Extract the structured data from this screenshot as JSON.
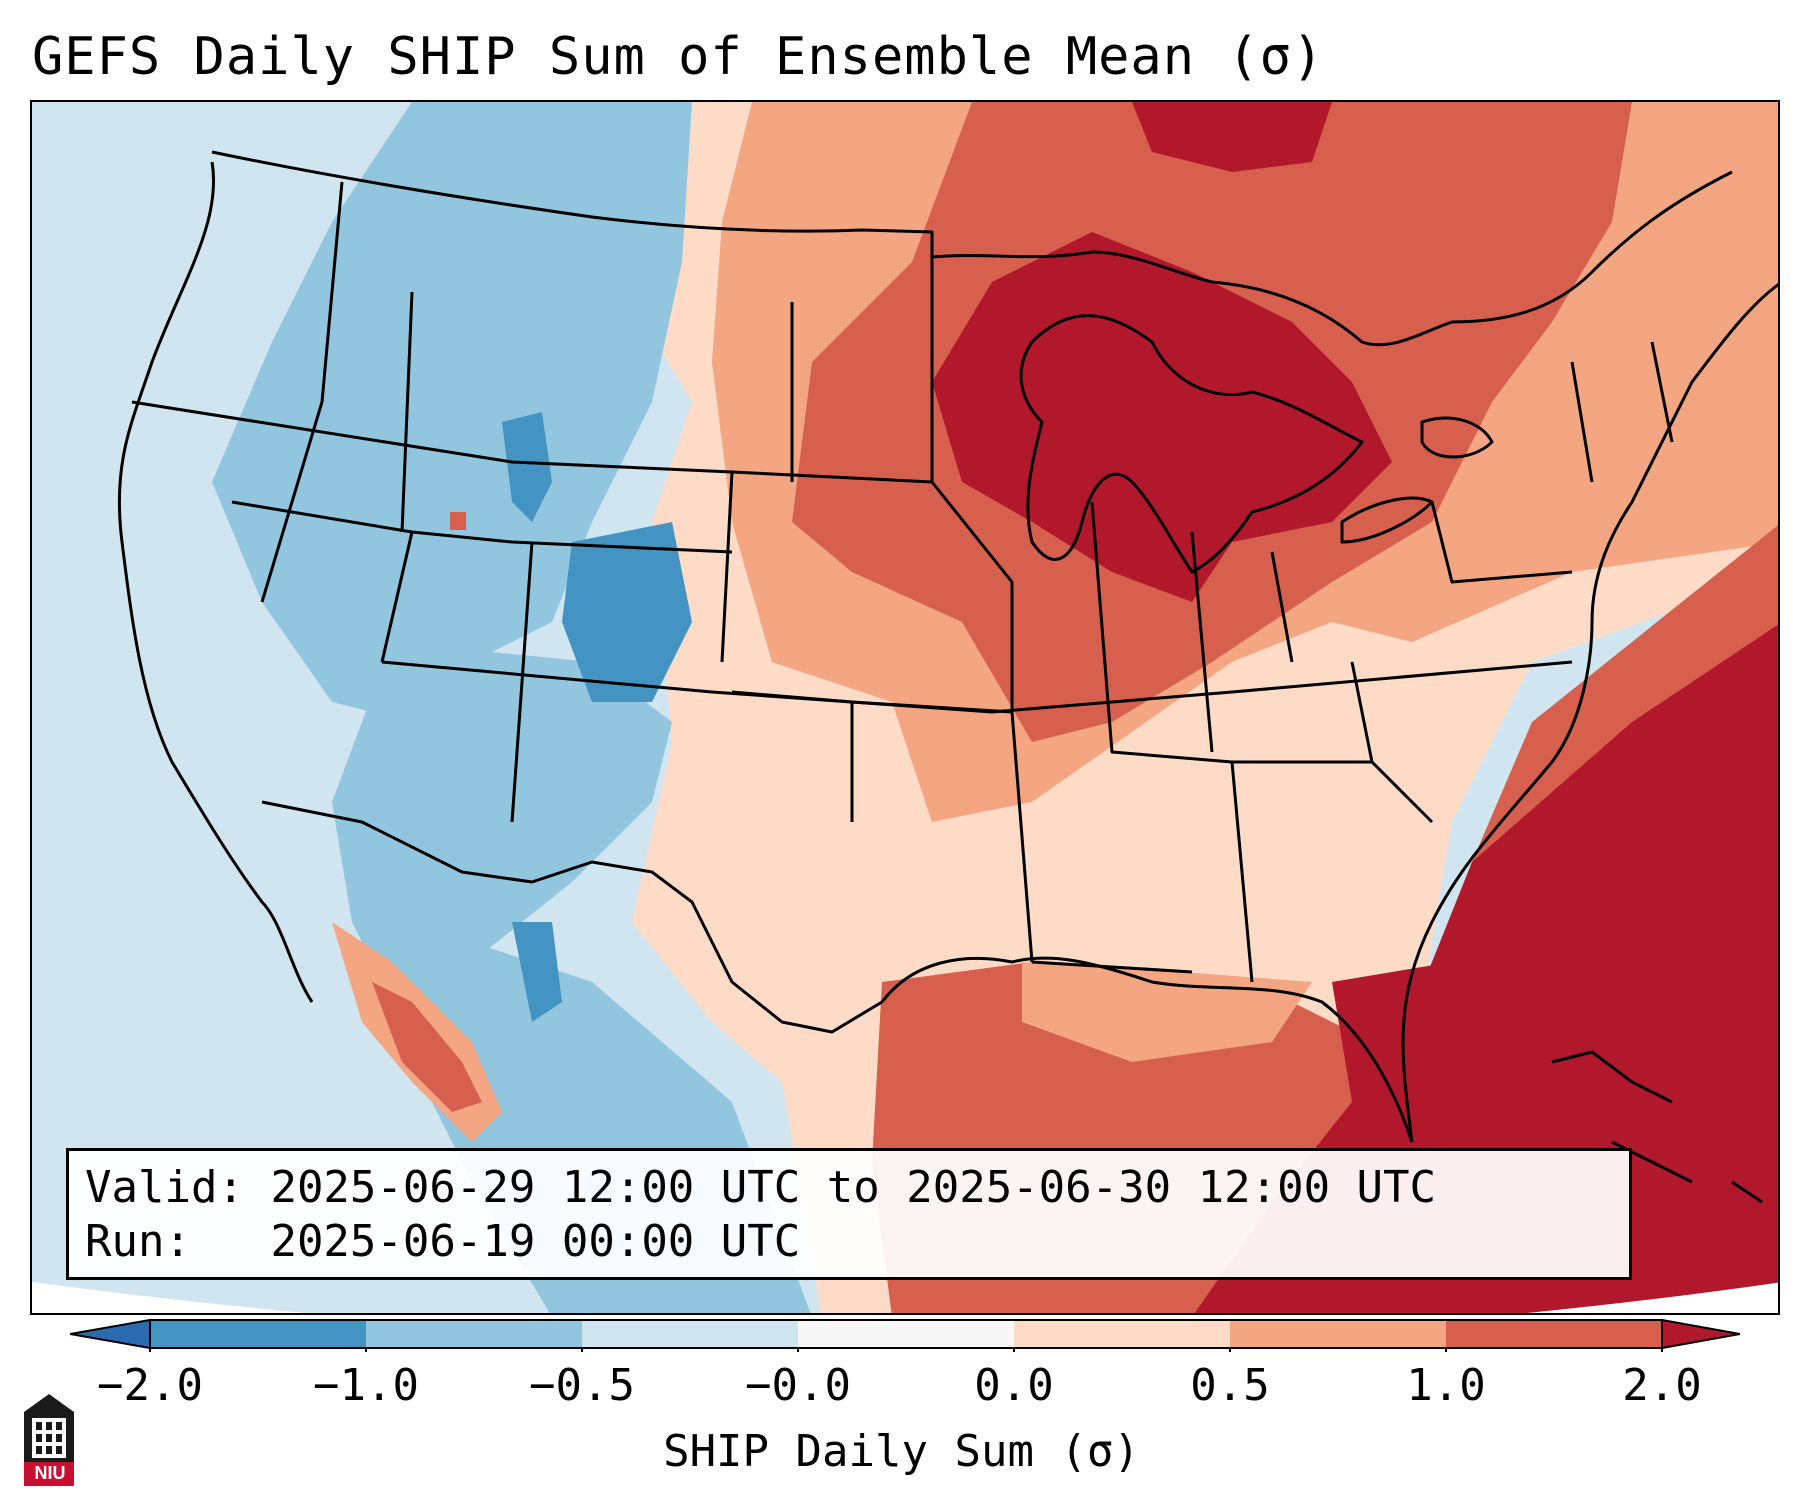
{
  "title": "GEFS Daily SHIP Sum of Ensemble Mean (σ)",
  "info": {
    "valid_label": "Valid:",
    "valid_value": "2025-06-29 12:00 UTC to 2025-06-30 12:00 UTC",
    "run_label": "Run:",
    "run_value": "2025-06-19 00:00 UTC"
  },
  "colorbar": {
    "label": "SHIP Daily Sum (σ)",
    "ticks": [
      "−2.0",
      "−1.0",
      "−0.5",
      "−0.0",
      "0.0",
      "0.5",
      "1.0",
      "2.0"
    ],
    "colors": {
      "below": "#2b6cb0",
      "bin_-2.0_-1.0": "#4393c3",
      "bin_-1.0_-0.5": "#92c5de",
      "bin_-0.5_0.0": "#d1e5f0",
      "bin_0.0_0.0": "#f7f7f7",
      "bin_0.0_0.5": "#fddbc7",
      "bin_0.5_1.0": "#f4a582",
      "bin_1.0_2.0": "#d6604d",
      "above": "#b2182b"
    }
  },
  "logo": {
    "text": "NIU",
    "icon": "niu-tower-logo-icon"
  }
}
